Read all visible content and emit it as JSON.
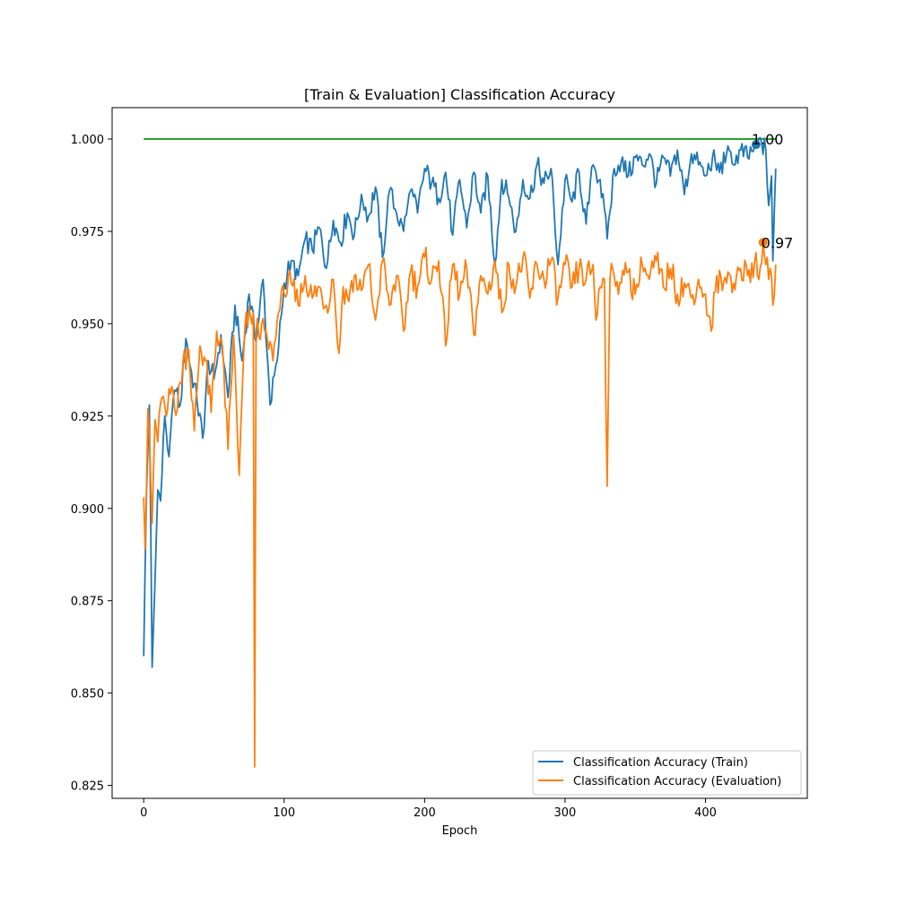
{
  "chart_data": {
    "type": "line",
    "title": "[Train & Evaluation] Classification Accuracy",
    "xlabel": "Epoch",
    "ylabel": "",
    "xlim": [
      -22.5,
      472.5
    ],
    "ylim": [
      0.8215,
      1.0085
    ],
    "xticks": [
      0,
      100,
      200,
      300,
      400
    ],
    "yticks": [
      0.825,
      0.85,
      0.875,
      0.9,
      0.925,
      0.95,
      0.975,
      1.0
    ],
    "ytick_labels": [
      "0.825",
      "0.850",
      "0.875",
      "0.900",
      "0.925",
      "0.950",
      "0.975",
      "1.000"
    ],
    "grid": false,
    "legend_position": "bottom-right",
    "colors": {
      "train": "#1f77b4",
      "evaluation": "#ff7f0e",
      "reference": "#2ca02c"
    },
    "series": [
      {
        "name": "Classification Accuracy (Train)",
        "color": "#1f77b4",
        "keypoints": [
          [
            0,
            0.86
          ],
          [
            2,
            0.905
          ],
          [
            4,
            0.928
          ],
          [
            6,
            0.857
          ],
          [
            8,
            0.88
          ],
          [
            10,
            0.905
          ],
          [
            12,
            0.902
          ],
          [
            15,
            0.925
          ],
          [
            18,
            0.914
          ],
          [
            22,
            0.932
          ],
          [
            26,
            0.928
          ],
          [
            30,
            0.946
          ],
          [
            34,
            0.937
          ],
          [
            38,
            0.929
          ],
          [
            42,
            0.919
          ],
          [
            46,
            0.94
          ],
          [
            50,
            0.935
          ],
          [
            55,
            0.947
          ],
          [
            60,
            0.93
          ],
          [
            65,
            0.955
          ],
          [
            70,
            0.94
          ],
          [
            75,
            0.958
          ],
          [
            80,
            0.945
          ],
          [
            85,
            0.962
          ],
          [
            90,
            0.928
          ],
          [
            95,
            0.94
          ],
          [
            100,
            0.961
          ],
          [
            105,
            0.967
          ],
          [
            110,
            0.963
          ],
          [
            115,
            0.973
          ],
          [
            120,
            0.97
          ],
          [
            125,
            0.976
          ],
          [
            130,
            0.965
          ],
          [
            135,
            0.978
          ],
          [
            140,
            0.972
          ],
          [
            145,
            0.98
          ],
          [
            150,
            0.974
          ],
          [
            155,
            0.985
          ],
          [
            160,
            0.979
          ],
          [
            165,
            0.987
          ],
          [
            170,
            0.968
          ],
          [
            175,
            0.986
          ],
          [
            180,
            0.98
          ],
          [
            185,
            0.975
          ],
          [
            190,
            0.986
          ],
          [
            195,
            0.98
          ],
          [
            200,
            0.992
          ],
          [
            205,
            0.988
          ],
          [
            210,
            0.984
          ],
          [
            215,
            0.991
          ],
          [
            220,
            0.974
          ],
          [
            225,
            0.989
          ],
          [
            230,
            0.976
          ],
          [
            235,
            0.991
          ],
          [
            240,
            0.98
          ],
          [
            245,
            0.99
          ],
          [
            250,
            0.966
          ],
          [
            255,
            0.989
          ],
          [
            260,
            0.984
          ],
          [
            265,
            0.975
          ],
          [
            270,
            0.989
          ],
          [
            275,
            0.984
          ],
          [
            280,
            0.993
          ],
          [
            285,
            0.988
          ],
          [
            290,
            0.992
          ],
          [
            295,
            0.966
          ],
          [
            300,
            0.989
          ],
          [
            305,
            0.983
          ],
          [
            310,
            0.991
          ],
          [
            315,
            0.977
          ],
          [
            320,
            0.993
          ],
          [
            325,
            0.989
          ],
          [
            330,
            0.973
          ],
          [
            335,
            0.992
          ],
          [
            340,
            0.994
          ],
          [
            345,
            0.99
          ],
          [
            350,
            0.995
          ],
          [
            355,
            0.993
          ],
          [
            360,
            0.996
          ],
          [
            365,
            0.988
          ],
          [
            370,
            0.995
          ],
          [
            375,
            0.99
          ],
          [
            380,
            0.997
          ],
          [
            385,
            0.985
          ],
          [
            390,
            0.996
          ],
          [
            395,
            0.993
          ],
          [
            400,
            0.99
          ],
          [
            405,
            0.995
          ],
          [
            410,
            0.991
          ],
          [
            415,
            0.996
          ],
          [
            420,
            0.993
          ],
          [
            425,
            0.997
          ],
          [
            430,
            0.995
          ],
          [
            435,
            0.998
          ],
          [
            440,
            0.999
          ],
          [
            443,
            0.997
          ],
          [
            445,
            0.982
          ],
          [
            447,
            0.99
          ],
          [
            448,
            0.967
          ],
          [
            450,
            0.992
          ]
        ],
        "best_point": {
          "epoch": 436,
          "value": 0.9985,
          "label": "1.00"
        }
      },
      {
        "name": "Classification Accuracy (Evaluation)",
        "color": "#ff7f0e",
        "keypoints": [
          [
            0,
            0.903
          ],
          [
            1,
            0.889
          ],
          [
            3,
            0.927
          ],
          [
            6,
            0.896
          ],
          [
            8,
            0.924
          ],
          [
            10,
            0.918
          ],
          [
            13,
            0.93
          ],
          [
            16,
            0.925
          ],
          [
            20,
            0.933
          ],
          [
            24,
            0.927
          ],
          [
            28,
            0.94
          ],
          [
            32,
            0.943
          ],
          [
            36,
            0.921
          ],
          [
            40,
            0.944
          ],
          [
            44,
            0.94
          ],
          [
            48,
            0.926
          ],
          [
            52,
            0.948
          ],
          [
            56,
            0.944
          ],
          [
            60,
            0.916
          ],
          [
            64,
            0.947
          ],
          [
            68,
            0.909
          ],
          [
            72,
            0.949
          ],
          [
            76,
            0.952
          ],
          [
            78,
            0.953
          ],
          [
            79,
            0.83
          ],
          [
            80,
            0.948
          ],
          [
            84,
            0.95
          ],
          [
            88,
            0.946
          ],
          [
            92,
            0.94
          ],
          [
            96,
            0.953
          ],
          [
            100,
            0.958
          ],
          [
            105,
            0.961
          ],
          [
            110,
            0.955
          ],
          [
            115,
            0.963
          ],
          [
            120,
            0.957
          ],
          [
            125,
            0.96
          ],
          [
            130,
            0.955
          ],
          [
            135,
            0.962
          ],
          [
            139,
            0.942
          ],
          [
            142,
            0.96
          ],
          [
            146,
            0.956
          ],
          [
            150,
            0.963
          ],
          [
            155,
            0.959
          ],
          [
            160,
            0.966
          ],
          [
            165,
            0.951
          ],
          [
            170,
            0.967
          ],
          [
            175,
            0.955
          ],
          [
            180,
            0.963
          ],
          [
            185,
            0.948
          ],
          [
            190,
            0.964
          ],
          [
            195,
            0.96
          ],
          [
            200,
            0.968
          ],
          [
            205,
            0.962
          ],
          [
            210,
            0.967
          ],
          [
            215,
            0.944
          ],
          [
            220,
            0.966
          ],
          [
            225,
            0.958
          ],
          [
            230,
            0.965
          ],
          [
            235,
            0.947
          ],
          [
            240,
            0.963
          ],
          [
            245,
            0.958
          ],
          [
            250,
            0.967
          ],
          [
            255,
            0.953
          ],
          [
            260,
            0.966
          ],
          [
            265,
            0.96
          ],
          [
            270,
            0.968
          ],
          [
            275,
            0.957
          ],
          [
            280,
            0.966
          ],
          [
            285,
            0.962
          ],
          [
            290,
            0.967
          ],
          [
            295,
            0.957
          ],
          [
            300,
            0.966
          ],
          [
            305,
            0.96
          ],
          [
            310,
            0.965
          ],
          [
            315,
            0.962
          ],
          [
            320,
            0.966
          ],
          [
            322,
            0.951
          ],
          [
            325,
            0.96
          ],
          [
            328,
            0.962
          ],
          [
            330,
            0.906
          ],
          [
            332,
            0.962
          ],
          [
            335,
            0.963
          ],
          [
            340,
            0.961
          ],
          [
            345,
            0.964
          ],
          [
            350,
            0.958
          ],
          [
            355,
            0.966
          ],
          [
            360,
            0.962
          ],
          [
            365,
            0.967
          ],
          [
            370,
            0.96
          ],
          [
            375,
            0.965
          ],
          [
            380,
            0.958
          ],
          [
            385,
            0.961
          ],
          [
            390,
            0.957
          ],
          [
            395,
            0.962
          ],
          [
            400,
            0.958
          ],
          [
            404,
            0.948
          ],
          [
            408,
            0.963
          ],
          [
            412,
            0.959
          ],
          [
            416,
            0.964
          ],
          [
            420,
            0.961
          ],
          [
            425,
            0.965
          ],
          [
            430,
            0.963
          ],
          [
            435,
            0.967
          ],
          [
            438,
            0.962
          ],
          [
            441,
            0.972
          ],
          [
            443,
            0.966
          ],
          [
            445,
            0.962
          ],
          [
            447,
            0.963
          ],
          [
            448,
            0.955
          ],
          [
            450,
            0.966
          ]
        ],
        "best_point": {
          "epoch": 441,
          "value": 0.972,
          "label": "0.97"
        }
      }
    ],
    "reference_line": {
      "y": 1.0,
      "x_start": 0,
      "x_end": 450,
      "color": "#2ca02c"
    }
  }
}
